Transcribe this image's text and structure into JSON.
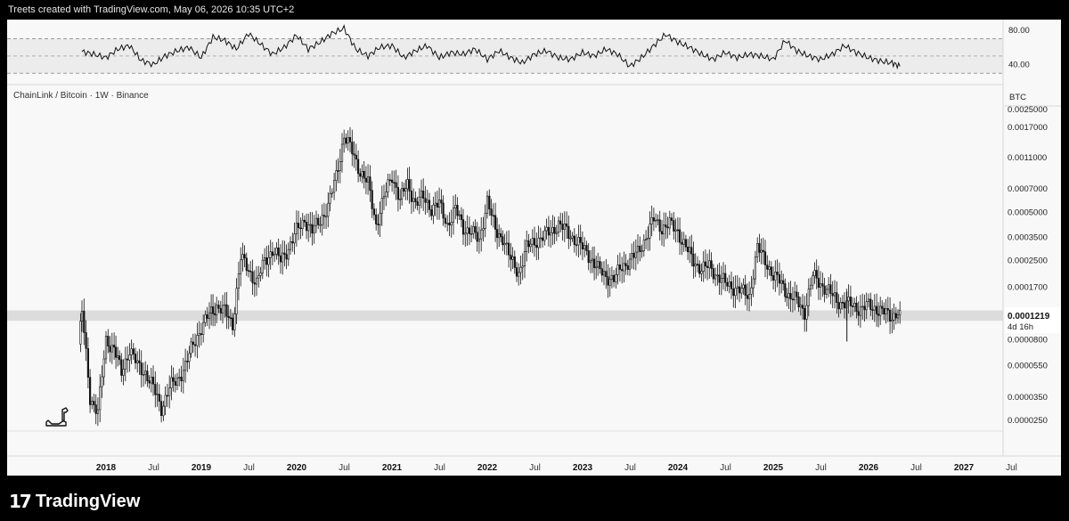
{
  "header": {
    "text": "Treets created with TradingView.com, May 06, 2026 10:35 UTC+2"
  },
  "footer": {
    "brand": "TradingView"
  },
  "price_panel": {
    "legend": "ChainLink / Bitcoin · 1W · Binance",
    "currency": "BTC",
    "last_price": "0.0001219",
    "countdown": "4d 16h",
    "top_partial_label": "0.0025000"
  },
  "colors": {
    "bg": "#f8f8f8",
    "candle": "#131313",
    "zone": "#dcdcdc",
    "price_tag": "#ffffff"
  },
  "chart_data": [
    {
      "type": "line",
      "name": "rsi",
      "y_ticks": [
        "80.00",
        "40.00"
      ],
      "bands": [
        30,
        50,
        70
      ],
      "ylim": [
        22,
        88
      ],
      "x": [
        "2017-10-01",
        "2017-11-15",
        "2018-01-01",
        "2018-02-15",
        "2018-04-01",
        "2018-05-15",
        "2018-07-01",
        "2018-08-15",
        "2018-10-01",
        "2018-11-15",
        "2019-01-01",
        "2019-02-15",
        "2019-04-01",
        "2019-05-15",
        "2019-07-01",
        "2019-08-15",
        "2019-10-01",
        "2019-11-15",
        "2020-01-01",
        "2020-02-15",
        "2020-04-01",
        "2020-05-15",
        "2020-07-01",
        "2020-08-15",
        "2020-10-01",
        "2020-11-15",
        "2021-01-01",
        "2021-02-15",
        "2021-04-01",
        "2021-05-15",
        "2021-07-01",
        "2021-08-15",
        "2021-10-01",
        "2021-11-15",
        "2022-01-01",
        "2022-02-15",
        "2022-04-01",
        "2022-05-15",
        "2022-07-01",
        "2022-08-15",
        "2022-10-01",
        "2022-11-15",
        "2023-01-01",
        "2023-02-15",
        "2023-04-01",
        "2023-05-15",
        "2023-07-01",
        "2023-08-15",
        "2023-10-01",
        "2023-11-15",
        "2024-01-01",
        "2024-02-15",
        "2024-04-01",
        "2024-05-15",
        "2024-07-01",
        "2024-08-15",
        "2024-10-01",
        "2024-11-15",
        "2025-01-01",
        "2025-02-15",
        "2025-04-01",
        "2025-05-15",
        "2025-07-01",
        "2025-08-15",
        "2025-10-01",
        "2025-11-15",
        "2026-01-01",
        "2026-02-15",
        "2026-04-01",
        "2026-05-01"
      ],
      "values": [
        55,
        52,
        48,
        58,
        62,
        45,
        40,
        50,
        56,
        60,
        48,
        72,
        68,
        58,
        76,
        64,
        52,
        60,
        74,
        58,
        66,
        76,
        82,
        58,
        50,
        60,
        62,
        48,
        56,
        62,
        48,
        54,
        52,
        58,
        46,
        56,
        48,
        42,
        52,
        56,
        48,
        46,
        54,
        50,
        58,
        52,
        38,
        48,
        62,
        75,
        66,
        60,
        52,
        46,
        54,
        48,
        52,
        50,
        46,
        68,
        56,
        50,
        46,
        52,
        62,
        54,
        48,
        44,
        42,
        38
      ]
    },
    {
      "type": "candlestick",
      "name": "ChainLink / Bitcoin",
      "yscale": "log",
      "ylim": [
        2.15e-05,
        0.00228
      ],
      "y_ticks": [
        "0.0017000",
        "0.0011000",
        "0.0007000",
        "0.0005000",
        "0.0003500",
        "0.0002500",
        "0.0001700",
        "0.0000800",
        "0.0000550",
        "0.0000350",
        "0.0000250"
      ],
      "x_ticks": [
        "2018",
        "Jul",
        "2019",
        "Jul",
        "2020",
        "Jul",
        "2021",
        "Jul",
        "2022",
        "Jul",
        "2023",
        "Jul",
        "2024",
        "Jul",
        "2025",
        "Jul",
        "2026",
        "Jul",
        "2027",
        "Jul"
      ],
      "support_zone": [
        0.000105,
        0.000122
      ],
      "x": [
        "2017-09-20",
        "2017-10-01",
        "2017-11-01",
        "2017-12-01",
        "2018-01-01",
        "2018-02-01",
        "2018-03-01",
        "2018-04-01",
        "2018-05-01",
        "2018-06-01",
        "2018-07-01",
        "2018-08-01",
        "2018-09-01",
        "2018-10-01",
        "2018-11-01",
        "2018-12-01",
        "2019-01-01",
        "2019-02-01",
        "2019-03-01",
        "2019-04-01",
        "2019-05-01",
        "2019-06-01",
        "2019-07-01",
        "2019-08-01",
        "2019-09-01",
        "2019-10-01",
        "2019-11-01",
        "2019-12-01",
        "2020-01-01",
        "2020-02-01",
        "2020-03-01",
        "2020-04-01",
        "2020-05-01",
        "2020-06-01",
        "2020-07-01",
        "2020-08-01",
        "2020-09-01",
        "2020-10-01",
        "2020-11-01",
        "2020-12-01",
        "2021-01-01",
        "2021-02-01",
        "2021-03-01",
        "2021-04-01",
        "2021-05-01",
        "2021-06-01",
        "2021-07-01",
        "2021-08-01",
        "2021-09-01",
        "2021-10-01",
        "2021-11-01",
        "2021-12-01",
        "2022-01-01",
        "2022-02-01",
        "2022-03-01",
        "2022-04-01",
        "2022-05-01",
        "2022-06-01",
        "2022-07-01",
        "2022-08-01",
        "2022-09-01",
        "2022-10-01",
        "2022-11-01",
        "2022-12-01",
        "2023-01-01",
        "2023-02-01",
        "2023-03-01",
        "2023-04-01",
        "2023-05-01",
        "2023-06-01",
        "2023-07-01",
        "2023-08-01",
        "2023-09-01",
        "2023-10-01",
        "2023-11-01",
        "2023-12-01",
        "2024-01-01",
        "2024-02-01",
        "2024-03-01",
        "2024-04-01",
        "2024-05-01",
        "2024-06-01",
        "2024-07-01",
        "2024-08-01",
        "2024-09-01",
        "2024-10-01",
        "2024-11-01",
        "2024-12-01",
        "2025-01-01",
        "2025-02-01",
        "2025-03-01",
        "2025-04-01",
        "2025-05-01",
        "2025-06-01",
        "2025-07-01",
        "2025-08-01",
        "2025-09-01",
        "2025-10-01",
        "2025-11-01",
        "2025-12-01",
        "2026-01-01",
        "2026-02-01",
        "2026-03-01",
        "2026-04-01",
        "2026-05-01"
      ],
      "values": [
        7.5e-05,
        0.00012,
        3.5e-05,
        2.8e-05,
        8e-05,
        7e-05,
        5e-05,
        7e-05,
        5.5e-05,
        5e-05,
        4e-05,
        3e-05,
        4e-05,
        4.5e-05,
        5.5e-05,
        7.5e-05,
        9.5e-05,
        0.000115,
        0.00013,
        0.00012,
        0.0001,
        0.00026,
        0.00022,
        0.00018,
        0.00025,
        0.00029,
        0.00025,
        0.0003,
        0.00038,
        0.00045,
        0.00038,
        0.00045,
        0.00054,
        0.00085,
        0.0015,
        0.0012,
        0.0009,
        0.00075,
        0.00042,
        0.00062,
        0.00085,
        0.0006,
        0.00075,
        0.00057,
        0.00062,
        0.00053,
        0.00056,
        0.00042,
        0.00052,
        0.0004,
        0.00038,
        0.00033,
        0.0006,
        0.00038,
        0.00035,
        0.00025,
        0.00021,
        0.0003,
        0.00033,
        0.00035,
        0.00038,
        0.00042,
        0.00038,
        0.00034,
        0.0003,
        0.00026,
        0.00022,
        0.0002,
        0.00019,
        0.00023,
        0.00025,
        0.00028,
        0.00035,
        0.00045,
        0.0004,
        0.00042,
        0.00038,
        0.0003,
        0.00025,
        0.00022,
        0.00023,
        0.0002,
        0.00018,
        0.00017,
        0.00016,
        0.00015,
        0.0003,
        0.00025,
        0.0002,
        0.00018,
        0.00015,
        0.00014,
        0.00012,
        0.0002,
        0.00018,
        0.00016,
        0.00014,
        0.000135,
        0.00013,
        0.000125,
        0.00013,
        0.000125,
        0.000118,
        0.000112,
        0.000122
      ]
    }
  ]
}
